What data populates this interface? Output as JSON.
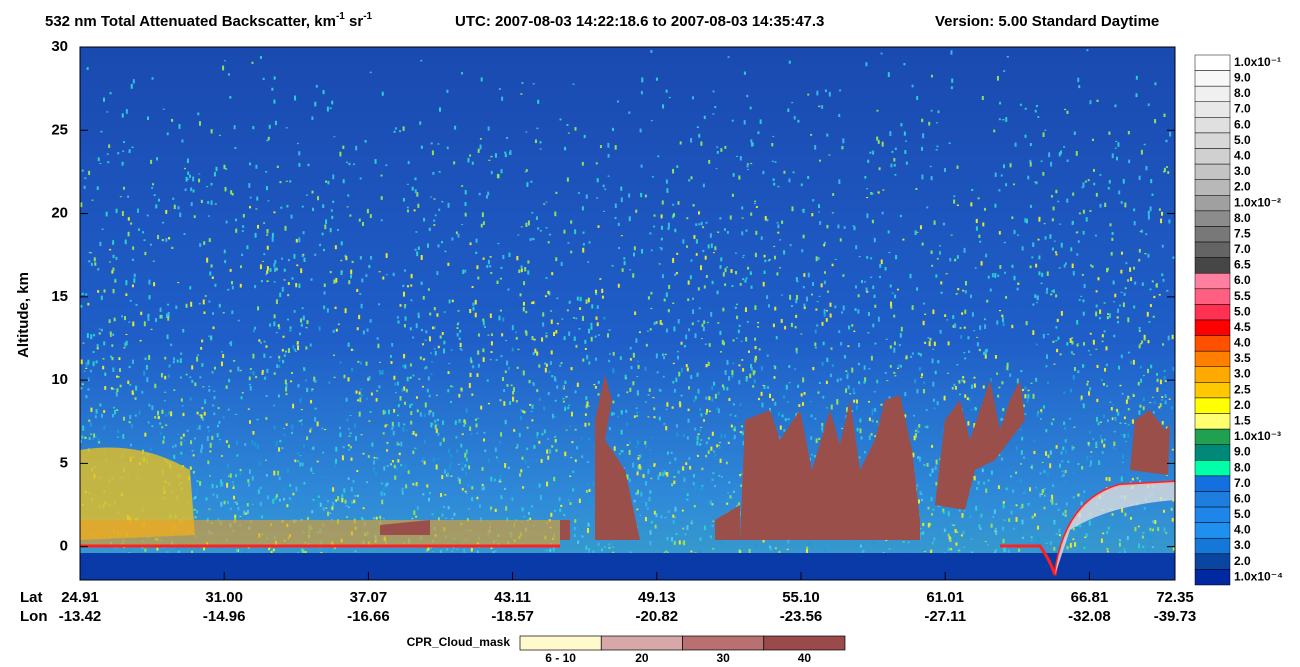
{
  "chart_data": {
    "type": "heatmap",
    "title_parts": [
      "532 nm Total Attenuated Backscatter, km",
      "-1",
      " sr",
      "-1"
    ],
    "utc": "UTC:  2007-08-03 14:22:18.6  to  2007-08-03 14:35:47.3",
    "version": "Version: 5.00  Standard  Daytime",
    "y_label": "Altitude, km",
    "ylim": [
      -2,
      30
    ],
    "yticks": [
      0,
      5,
      10,
      15,
      20,
      25,
      30
    ],
    "row_labels": [
      "Lat",
      "Lon"
    ],
    "lat": [
      "24.91",
      "31.00",
      "37.07",
      "43.11",
      "49.13",
      "55.10",
      "61.01",
      "66.81",
      "72.35"
    ],
    "lon": [
      "-13.42",
      "-14.96",
      "-16.66",
      "-18.57",
      "-20.82",
      "-23.56",
      "-27.11",
      "-32.08",
      "-39.73"
    ],
    "colorbar": {
      "labels": [
        "1.0x10⁻¹",
        "9.0",
        "8.0",
        "7.0",
        "6.0",
        "5.0",
        "4.0",
        "3.0",
        "2.0",
        "1.0x10⁻²",
        "8.0",
        "7.5",
        "7.0",
        "6.5",
        "6.0",
        "5.5",
        "5.0",
        "4.5",
        "4.0",
        "3.5",
        "3.0",
        "2.5",
        "2.0",
        "1.5",
        "1.0x10⁻³",
        "9.0",
        "8.0",
        "7.0",
        "6.0",
        "5.0",
        "4.0",
        "3.0",
        "2.0",
        "1.0x10⁻⁴"
      ],
      "colors": [
        "#ffffff",
        "#f8f8f8",
        "#f0f0f0",
        "#e8e8e8",
        "#e0e0e0",
        "#d8d8d8",
        "#d0d0d0",
        "#c4c4c4",
        "#b8b8b8",
        "#a0a0a0",
        "#8c8c8c",
        "#787878",
        "#646464",
        "#464646",
        "#ff7fa0",
        "#ff5f80",
        "#ff3050",
        "#ff0000",
        "#ff5000",
        "#ff7f00",
        "#ffaa00",
        "#ffc800",
        "#ffff00",
        "#ffff70",
        "#20a050",
        "#008878",
        "#00ffa8",
        "#1470e0",
        "#1e7ee0",
        "#1e86ea",
        "#1e90f0",
        "#1478d8",
        "#0a46a0",
        "#0028a0"
      ]
    },
    "cpr_legend": {
      "title": "CPR_Cloud_mask",
      "labels": [
        "6 - 10",
        "20",
        "30",
        "40"
      ],
      "colors": [
        "#fffacd",
        "#d8a8a8",
        "#b87070",
        "#9a4a4a"
      ]
    }
  }
}
